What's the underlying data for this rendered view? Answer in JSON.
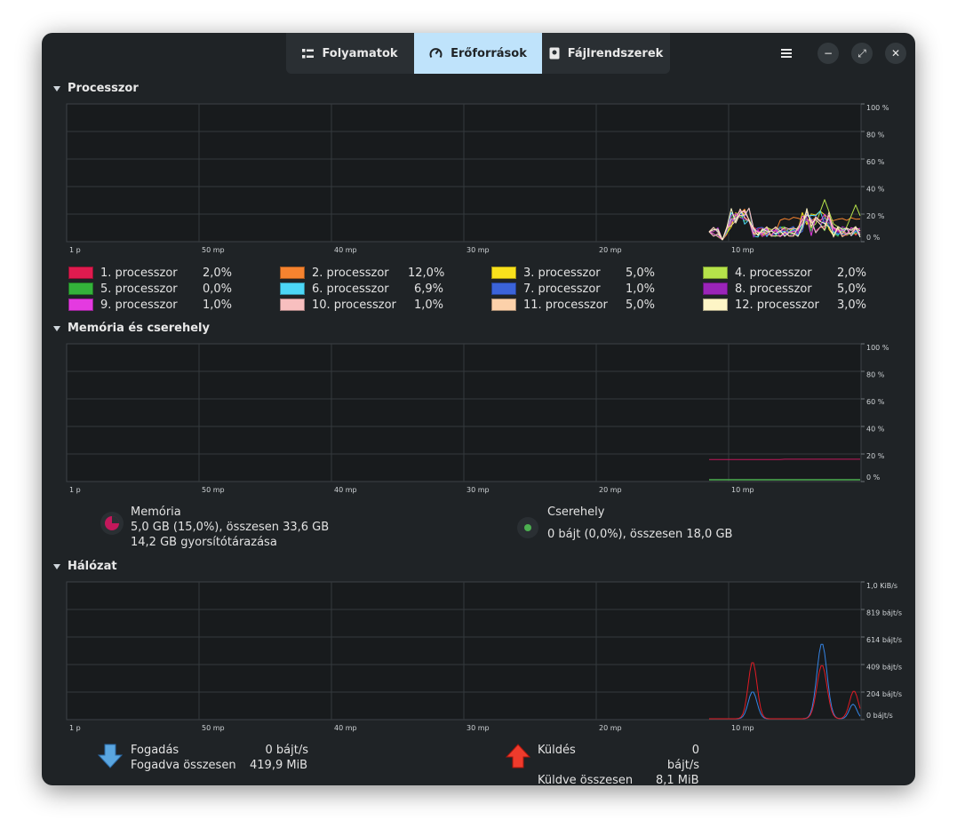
{
  "tabs": [
    {
      "label": "Folyamatok",
      "icon": "list-icon",
      "active": false
    },
    {
      "label": "Erőforrások",
      "icon": "gauge-icon",
      "active": true
    },
    {
      "label": "Fájlrendszerek",
      "icon": "drive-icon",
      "active": false
    }
  ],
  "window_controls": {
    "menu": "hamburger-menu-icon",
    "minimize": "−",
    "maximize": "⤢",
    "close": "✕"
  },
  "time_axis_labels": [
    "1 p",
    "50 mp",
    "40 mp",
    "30 mp",
    "20 mp",
    "10 mp"
  ],
  "cpu": {
    "title": "Processzor",
    "y_labels": [
      "100 %",
      "80 %",
      "60 %",
      "40 %",
      "20 %",
      "0 %"
    ],
    "cores": [
      {
        "label": "1. processzor",
        "value": "2,0%",
        "color": "#e01b4f"
      },
      {
        "label": "2. processzor",
        "value": "12,0%",
        "color": "#f6832f"
      },
      {
        "label": "3. processzor",
        "value": "5,0%",
        "color": "#f8e11c"
      },
      {
        "label": "4. processzor",
        "value": "2,0%",
        "color": "#b6e34a"
      },
      {
        "label": "5. processzor",
        "value": "0,0%",
        "color": "#33b33a"
      },
      {
        "label": "6. processzor",
        "value": "6,9%",
        "color": "#4cd6f6"
      },
      {
        "label": "7. processzor",
        "value": "1,0%",
        "color": "#3b63d9"
      },
      {
        "label": "8. processzor",
        "value": "5,0%",
        "color": "#9a24b8"
      },
      {
        "label": "9. processzor",
        "value": "1,0%",
        "color": "#e43ae0"
      },
      {
        "label": "10. processzor",
        "value": "1,0%",
        "color": "#f8bfbf"
      },
      {
        "label": "11. processzor",
        "value": "5,0%",
        "color": "#fcd1aa"
      },
      {
        "label": "12. processzor",
        "value": "3,0%",
        "color": "#fdf5c6"
      }
    ]
  },
  "memory": {
    "title": "Memória és cserehely",
    "y_labels": [
      "100 %",
      "80 %",
      "60 %",
      "40 %",
      "20 %",
      "0 %"
    ],
    "mem_title": "Memória",
    "mem_line1": "5,0 GB (15,0%), összesen 33,6 GB",
    "mem_line2": "14,2 GB gyorsítótárazása",
    "mem_color": "#c2185b",
    "swap_title": "Cserehely",
    "swap_line1": "0 bájt (0,0%), összesen 18,0 GB",
    "swap_color": "#4caf50"
  },
  "network": {
    "title": "Hálózat",
    "y_labels": [
      "1,0 KiB/s",
      "819 bájt/s",
      "614 bájt/s",
      "409 bájt/s",
      "204 bájt/s",
      "0 bájt/s"
    ],
    "recv_label": "Fogadás",
    "recv_value": "0 bájt/s",
    "recv_total_label": "Fogadva összesen",
    "recv_total_value": "419,9 MiB",
    "recv_color": "#3584e4",
    "send_label": "Küldés",
    "send_value": "0 bájt/s",
    "send_total_label": "Küldve összesen",
    "send_total_value": "8,1 MiB",
    "send_color": "#e01b24"
  }
}
